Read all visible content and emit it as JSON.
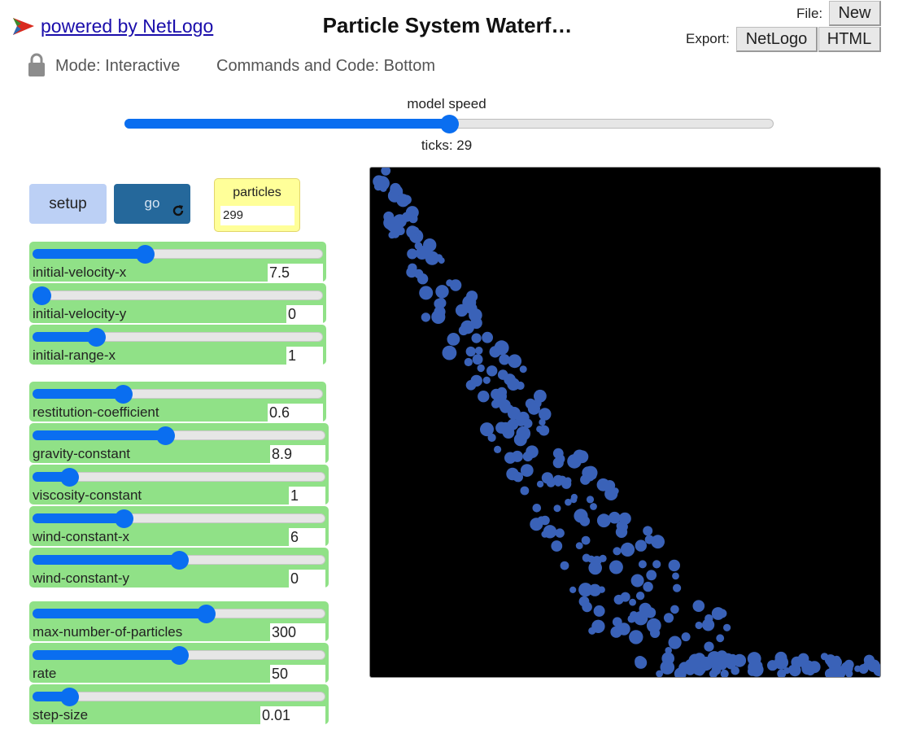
{
  "header": {
    "powered_by": "powered by NetLogo",
    "title": "Particle System Waterf…",
    "file_label": "File:",
    "new_label": "New",
    "export_label": "Export:",
    "export_netlogo_label": "NetLogo",
    "export_html_label": "HTML"
  },
  "mode_bar": {
    "mode": "Mode: Interactive",
    "commands": "Commands and Code: Bottom"
  },
  "speed": {
    "label": "model speed",
    "fraction": 0.5,
    "ticks": "ticks: 29"
  },
  "buttons": {
    "setup": "setup",
    "go": "go"
  },
  "monitor": {
    "label": "particles",
    "value": "299"
  },
  "sliders": [
    {
      "name": "initial-velocity-x",
      "value": "7.5",
      "fraction": 0.38
    },
    {
      "name": "initial-velocity-y",
      "value": "0",
      "fraction": 0.0
    },
    {
      "name": "initial-range-x",
      "value": "1",
      "fraction": 0.2
    },
    {
      "name": "restitution-coefficient",
      "value": "0.6",
      "fraction": 0.3
    },
    {
      "name": "gravity-constant",
      "value": "8.9",
      "fraction": 0.45
    },
    {
      "name": "viscosity-constant",
      "value": "1",
      "fraction": 0.1
    },
    {
      "name": "wind-constant-x",
      "value": "6",
      "fraction": 0.3
    },
    {
      "name": "wind-constant-y",
      "value": "0",
      "fraction": 0.5
    },
    {
      "name": "max-number-of-particles",
      "value": "300",
      "fraction": 0.6
    },
    {
      "name": "rate",
      "value": "50",
      "fraction": 0.5
    },
    {
      "name": "step-size",
      "value": "0.01",
      "fraction": 0.1
    }
  ],
  "colors": {
    "particle": "#3a62b8",
    "world_background": "#000000",
    "slider_bg": "#90e187",
    "accent": "#0a6ef0"
  }
}
